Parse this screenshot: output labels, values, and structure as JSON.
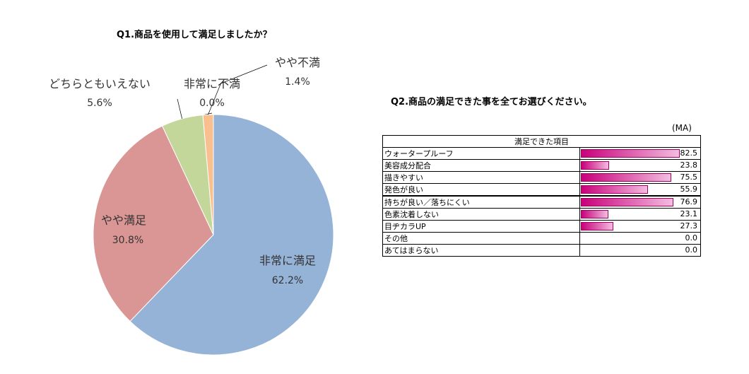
{
  "q1": {
    "title": "Q1.商品を使用して満足しましたか？"
  },
  "q2": {
    "title": "Q2.商品の満足できた事を全てお選びください。",
    "ma_label": "(MA)",
    "column_header": "満足できた項目"
  },
  "chart_data": [
    {
      "type": "pie",
      "title": "Q1.商品を使用して満足しましたか？",
      "slices": [
        {
          "label": "非常に満足",
          "value": 62.2,
          "value_label": "62.2%",
          "color": "#95b3d7"
        },
        {
          "label": "やや満足",
          "value": 30.8,
          "value_label": "30.8%",
          "color": "#da9694"
        },
        {
          "label": "どちらともいえない",
          "value": 5.6,
          "value_label": "5.6%",
          "color": "#c4d79b"
        },
        {
          "label": "非常に不満",
          "value": 0.0,
          "value_label": "0.0%",
          "color": "#f4b183"
        },
        {
          "label": "やや不満",
          "value": 1.4,
          "value_label": "1.4%",
          "color": "#fabf8f"
        }
      ]
    },
    {
      "type": "bar",
      "title": "Q2.商品の満足できた事を全てお選びください。",
      "categories": [
        "ウォータープルーフ",
        "美容成分配合",
        "描きやすい",
        "発色が良い",
        "持ちが良い／落ちにくい",
        "色素沈着しない",
        "目ヂカラUP",
        "その他",
        "あてはまらない"
      ],
      "values": [
        82.5,
        23.8,
        75.5,
        55.9,
        76.9,
        23.1,
        27.3,
        0.0,
        0.0
      ],
      "value_labels": [
        "82.5",
        "23.8",
        "75.5",
        "55.9",
        "76.9",
        "23.1",
        "27.3",
        "0.0",
        "0.0"
      ],
      "ylim": [
        0,
        100
      ],
      "color": "#c8007a"
    }
  ]
}
